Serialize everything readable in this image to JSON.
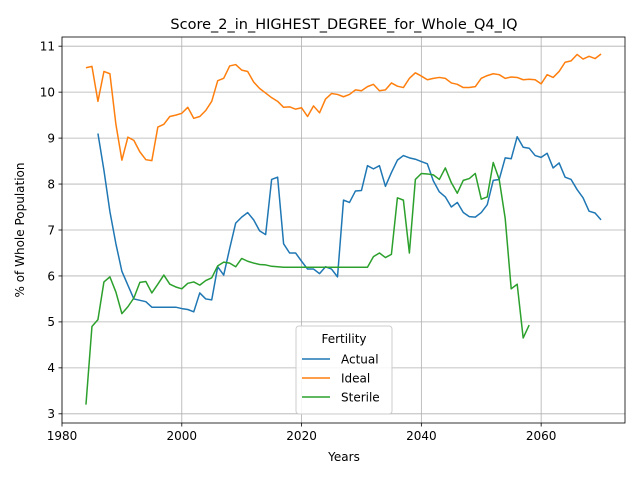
{
  "chart_data": {
    "type": "line",
    "title": "Score_2_in_HIGHEST_DEGREE_for_Whole_Q4_IQ",
    "xlabel": "Years",
    "ylabel": "% of Whole Population",
    "xlim": [
      1980,
      2074
    ],
    "ylim": [
      2.8,
      11.2
    ],
    "xticks": [
      1980,
      2000,
      2020,
      2040,
      2060
    ],
    "yticks": [
      3,
      4,
      5,
      6,
      7,
      8,
      9,
      10,
      11
    ],
    "grid": true,
    "legend": {
      "title": "Fertility",
      "placement": "lower center"
    },
    "series": [
      {
        "name": "Actual",
        "color": "#1f77b4",
        "x": [
          1986,
          1987,
          1988,
          1989,
          1990,
          1991,
          1992,
          1993,
          1994,
          1995,
          1996,
          1997,
          1998,
          1999,
          2000,
          2001,
          2002,
          2003,
          2004,
          2005,
          2006,
          2007,
          2008,
          2009,
          2010,
          2011,
          2012,
          2013,
          2014,
          2015,
          2016,
          2017,
          2018,
          2019,
          2020,
          2021,
          2022,
          2023,
          2024,
          2025,
          2026,
          2027,
          2028,
          2029,
          2030,
          2031,
          2032,
          2033,
          2034,
          2035,
          2036,
          2037,
          2038,
          2039,
          2040,
          2041,
          2042,
          2043,
          2044,
          2045,
          2046,
          2047,
          2048,
          2049,
          2050,
          2051,
          2052,
          2053,
          2054,
          2055,
          2056,
          2057,
          2058,
          2059,
          2060,
          2061,
          2062,
          2063,
          2064,
          2065,
          2066,
          2067,
          2068,
          2069,
          2070
        ],
        "y": [
          9.1,
          8.3,
          7.4,
          6.7,
          6.1,
          5.8,
          5.5,
          5.47,
          5.44,
          5.32,
          5.32,
          5.32,
          5.32,
          5.32,
          5.29,
          5.27,
          5.22,
          5.63,
          5.5,
          5.48,
          6.2,
          6.02,
          6.6,
          7.15,
          7.28,
          7.38,
          7.22,
          6.98,
          6.9,
          8.1,
          8.15,
          6.7,
          6.5,
          6.5,
          6.32,
          6.15,
          6.15,
          6.05,
          6.2,
          6.15,
          5.98,
          7.65,
          7.6,
          7.85,
          7.86,
          8.4,
          8.33,
          8.4,
          7.95,
          8.25,
          8.52,
          8.62,
          8.57,
          8.54,
          8.49,
          8.44,
          8.07,
          7.83,
          7.72,
          7.5,
          7.6,
          7.38,
          7.29,
          7.28,
          7.38,
          7.55,
          8.08,
          8.1,
          8.57,
          8.55,
          9.03,
          8.8,
          8.78,
          8.62,
          8.58,
          8.67,
          8.35,
          8.46,
          8.15,
          8.1,
          7.88,
          7.7,
          7.41,
          7.37,
          7.22
        ]
      },
      {
        "name": "Ideal",
        "color": "#ff7f0e",
        "x": [
          1984,
          1985,
          1986,
          1987,
          1988,
          1989,
          1990,
          1991,
          1992,
          1993,
          1994,
          1995,
          1996,
          1997,
          1998,
          1999,
          2000,
          2001,
          2002,
          2003,
          2004,
          2005,
          2006,
          2007,
          2008,
          2009,
          2010,
          2011,
          2012,
          2013,
          2014,
          2015,
          2016,
          2017,
          2018,
          2019,
          2020,
          2021,
          2022,
          2023,
          2024,
          2025,
          2026,
          2027,
          2028,
          2029,
          2030,
          2031,
          2032,
          2033,
          2034,
          2035,
          2036,
          2037,
          2038,
          2039,
          2040,
          2041,
          2042,
          2043,
          2044,
          2045,
          2046,
          2047,
          2048,
          2049,
          2050,
          2051,
          2052,
          2053,
          2054,
          2055,
          2056,
          2057,
          2058,
          2059,
          2060,
          2061,
          2062,
          2063,
          2064,
          2065,
          2066,
          2067,
          2068,
          2069,
          2070
        ],
        "y": [
          10.53,
          10.56,
          9.8,
          10.45,
          10.4,
          9.3,
          8.52,
          9.02,
          8.95,
          8.7,
          8.53,
          8.51,
          9.24,
          9.3,
          9.47,
          9.5,
          9.54,
          9.67,
          9.43,
          9.47,
          9.6,
          9.8,
          10.25,
          10.3,
          10.57,
          10.6,
          10.48,
          10.45,
          10.22,
          10.08,
          9.98,
          9.88,
          9.8,
          9.67,
          9.68,
          9.63,
          9.66,
          9.47,
          9.7,
          9.55,
          9.85,
          9.97,
          9.95,
          9.9,
          9.95,
          10.05,
          10.03,
          10.12,
          10.17,
          10.03,
          10.05,
          10.2,
          10.13,
          10.1,
          10.3,
          10.42,
          10.35,
          10.27,
          10.3,
          10.32,
          10.3,
          10.2,
          10.17,
          10.1,
          10.1,
          10.12,
          10.3,
          10.36,
          10.4,
          10.38,
          10.3,
          10.33,
          10.32,
          10.27,
          10.28,
          10.27,
          10.18,
          10.38,
          10.32,
          10.45,
          10.65,
          10.68,
          10.82,
          10.72,
          10.78,
          10.73,
          10.83
        ]
      },
      {
        "name": "Sterile",
        "color": "#2ca02c",
        "x": [
          1984,
          1985,
          1986,
          1987,
          1988,
          1989,
          1990,
          1991,
          1992,
          1993,
          1994,
          1995,
          1996,
          1997,
          1998,
          1999,
          2000,
          2001,
          2002,
          2003,
          2004,
          2005,
          2006,
          2007,
          2008,
          2009,
          2010,
          2011,
          2012,
          2013,
          2014,
          2015,
          2016,
          2017,
          2018,
          2019,
          2020,
          2021,
          2022,
          2023,
          2024,
          2025,
          2026,
          2027,
          2028,
          2029,
          2030,
          2031,
          2032,
          2033,
          2034,
          2035,
          2036,
          2037,
          2038,
          2039,
          2040,
          2041,
          2042,
          2043,
          2044,
          2045,
          2046,
          2047,
          2048,
          2049,
          2050,
          2051,
          2052,
          2053,
          2054,
          2055,
          2056,
          2057,
          2058
        ],
        "y": [
          3.2,
          4.9,
          5.05,
          5.87,
          5.98,
          5.65,
          5.18,
          5.33,
          5.52,
          5.86,
          5.88,
          5.63,
          5.82,
          6.02,
          5.82,
          5.76,
          5.72,
          5.84,
          5.87,
          5.8,
          5.9,
          5.96,
          6.22,
          6.3,
          6.28,
          6.2,
          6.38,
          6.32,
          6.28,
          6.25,
          6.24,
          6.21,
          6.2,
          6.19,
          6.19,
          6.19,
          6.19,
          6.19,
          6.19,
          6.19,
          6.19,
          6.19,
          6.19,
          6.19,
          6.19,
          6.19,
          6.19,
          6.19,
          6.42,
          6.5,
          6.4,
          6.47,
          7.7,
          7.65,
          6.5,
          8.1,
          8.23,
          8.22,
          8.2,
          8.1,
          8.35,
          8.03,
          7.8,
          8.08,
          8.12,
          8.23,
          7.67,
          7.72,
          8.47,
          8.1,
          7.25,
          5.72,
          5.82,
          4.65,
          4.93
        ]
      }
    ]
  }
}
